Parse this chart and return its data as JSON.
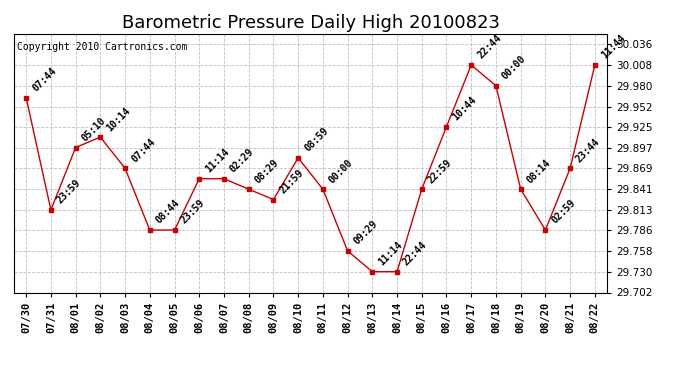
{
  "title": "Barometric Pressure Daily High 20100823",
  "copyright": "Copyright 2010 Cartronics.com",
  "x_labels": [
    "07/30",
    "07/31",
    "08/01",
    "08/02",
    "08/03",
    "08/04",
    "08/05",
    "08/06",
    "08/07",
    "08/08",
    "08/09",
    "08/10",
    "08/11",
    "08/12",
    "08/13",
    "08/14",
    "08/15",
    "08/16",
    "08/17",
    "08/18",
    "08/19",
    "08/20",
    "08/21",
    "08/22"
  ],
  "y_values": [
    29.964,
    29.813,
    29.897,
    29.911,
    29.869,
    29.786,
    29.786,
    29.855,
    29.855,
    29.841,
    29.827,
    29.883,
    29.841,
    29.758,
    29.73,
    29.73,
    29.841,
    29.925,
    30.008,
    29.98,
    29.841,
    29.786,
    29.869,
    30.008
  ],
  "point_labels": [
    "07:44",
    "23:59",
    "05:10",
    "10:14",
    "07:44",
    "08:44",
    "23:59",
    "11:14",
    "02:29",
    "08:29",
    "21:59",
    "08:59",
    "00:00",
    "09:29",
    "11:14",
    "22:44",
    "22:59",
    "10:44",
    "22:44",
    "00:00",
    "08:14",
    "02:59",
    "23:44",
    "11:44"
  ],
  "line_color": "#cc0000",
  "marker_color": "#cc0000",
  "bg_color": "#ffffff",
  "plot_bg_color": "#ffffff",
  "grid_color": "#c0c0c0",
  "ylim": [
    29.702,
    30.05
  ],
  "yticks": [
    29.702,
    29.73,
    29.758,
    29.786,
    29.813,
    29.841,
    29.869,
    29.897,
    29.925,
    29.952,
    29.98,
    30.008,
    30.036
  ],
  "title_fontsize": 13,
  "label_fontsize": 7,
  "tick_fontsize": 7.5,
  "copyright_fontsize": 7
}
